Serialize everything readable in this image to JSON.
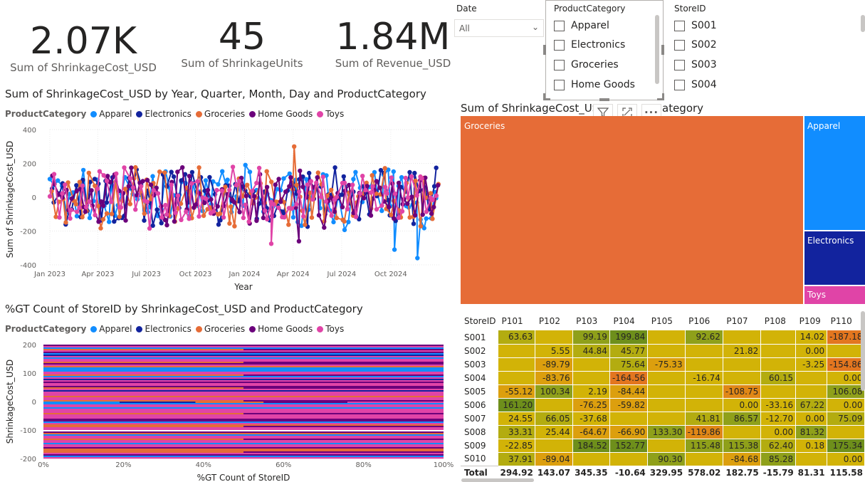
{
  "cards": [
    {
      "value": "2.07K",
      "label": "Sum of ShrinkageCost_USD"
    },
    {
      "value": "45",
      "label": "Sum of ShrinkageUnits"
    },
    {
      "value": "1.84M",
      "label": "Sum of Revenue_USD"
    }
  ],
  "colors": {
    "Apparel": "#118DFF",
    "Electronics": "#12239E",
    "Groceries": "#E66C37",
    "Home Goods": "#6B007B",
    "Toys": "#E044A7"
  },
  "legend": {
    "title": "ProductCategory",
    "items": [
      "Apparel",
      "Electronics",
      "Groceries",
      "Home Goods",
      "Toys"
    ]
  },
  "line_chart": {
    "title": "Sum of ShrinkageCost_USD by Year, Quarter, Month, Day and ProductCategory",
    "chart_data": {
      "type": "line",
      "title": "Sum of ShrinkageCost_USD by Year, Quarter, Month, Day and ProductCategory",
      "xlabel": "Year",
      "ylabel": "Sum of ShrinkageCost_USD",
      "ylim": [
        -400,
        400
      ],
      "y_ticks": [
        "400",
        "200",
        "0",
        "-200",
        "-400"
      ],
      "x_ticks": [
        "Jan 2023",
        "Apr 2023",
        "Jul 2023",
        "Oct 2023",
        "Jan 2024",
        "Apr 2024",
        "Jul 2024",
        "Oct 2024"
      ],
      "xlim": [
        "2023-01-01",
        "2024-12-31"
      ],
      "series_names": [
        "Apparel",
        "Electronics",
        "Groceries",
        "Home Goods",
        "Toys"
      ],
      "notable_points": [
        {
          "series": "Groceries",
          "x": "2024-04-03",
          "y": 300
        },
        {
          "series": "Toys",
          "x": "2024-02-20",
          "y": -275
        },
        {
          "series": "Home Goods",
          "x": "2024-04-12",
          "y": -260
        },
        {
          "series": "Apparel",
          "x": "2024-11-20",
          "y": -360
        },
        {
          "series": "Apparel",
          "x": "2024-10-08",
          "y": -310
        }
      ],
      "grid": true
    }
  },
  "bar_chart": {
    "title": "%GT Count of StoreID by ShrinkageCost_USD and ProductCategory",
    "chart_data": {
      "type": "bar",
      "orientation": "horizontal-stacked-100",
      "title": "%GT Count of StoreID by ShrinkageCost_USD and ProductCategory",
      "xlabel": "%GT Count of StoreID",
      "ylabel": "ShrinkageCost_USD",
      "ylim": [
        -200,
        200
      ],
      "y_ticks": [
        "200",
        "100",
        "0",
        "-100",
        "-200"
      ],
      "x_ticks": [
        "0%",
        "20%",
        "40%",
        "60%",
        "80%",
        "100%"
      ],
      "series_names": [
        "Apparel",
        "Electronics",
        "Groceries",
        "Home Goods",
        "Toys"
      ]
    }
  },
  "slicers": {
    "date": {
      "title": "Date",
      "value": "All"
    },
    "category": {
      "title": "ProductCategory",
      "items": [
        "Apparel",
        "Electronics",
        "Groceries",
        "Home Goods"
      ]
    },
    "store": {
      "title": "StoreID",
      "items": [
        "S001",
        "S002",
        "S003",
        "S004"
      ]
    }
  },
  "treemap": {
    "title": "Sum of ShrinkageCost_USD by ProductCategory",
    "title_visible": "Sum of ShrinkageCost_USD",
    "title_tail": "ategory",
    "chart_data": {
      "type": "treemap",
      "title": "Sum of ShrinkageCost_USD by ProductCategory",
      "labels": [
        "Groceries",
        "Apparel",
        "Electronics",
        "Toys"
      ]
    }
  },
  "matrix": {
    "corner": "StoreID",
    "columns": [
      "P101",
      "P102",
      "P103",
      "P104",
      "P105",
      "P106",
      "P107",
      "P108",
      "P109",
      "P110"
    ],
    "rows": [
      {
        "store": "S001",
        "values": [
          "63.63",
          "",
          "99.19",
          "199.84",
          "",
          "92.62",
          "",
          "",
          "14.02",
          "-187.18"
        ]
      },
      {
        "store": "S002",
        "values": [
          "",
          "5.55",
          "44.84",
          "45.77",
          "",
          "",
          "21.82",
          "",
          "0.00",
          ""
        ]
      },
      {
        "store": "S003",
        "values": [
          "",
          "-89.79",
          "",
          "75.64",
          "-75.33",
          "",
          "",
          "",
          "-3.25",
          "-154.86"
        ]
      },
      {
        "store": "S004",
        "values": [
          "",
          "-83.76",
          "",
          "-164.56",
          "",
          "-16.74",
          "",
          "60.15",
          "",
          "0.00"
        ]
      },
      {
        "store": "S005",
        "values": [
          "-55.12",
          "100.34",
          "2.19",
          "-84.44",
          "",
          "",
          "-108.75",
          "",
          "",
          "106.08"
        ]
      },
      {
        "store": "S006",
        "values": [
          "161.20",
          "",
          "-76.25",
          "-59.82",
          "",
          "",
          "0.00",
          "-33.16",
          "67.22",
          "0.00"
        ]
      },
      {
        "store": "S007",
        "values": [
          "24.55",
          "66.05",
          "-37.68",
          "",
          "",
          "41.81",
          "86.57",
          "-12.70",
          "0.00",
          "75.09"
        ]
      },
      {
        "store": "S008",
        "values": [
          "33.31",
          "25.44",
          "-64.67",
          "-66.90",
          "133.30",
          "-119.86",
          "",
          "0.00",
          "81.32",
          ""
        ]
      },
      {
        "store": "S009",
        "values": [
          "-22.85",
          "",
          "184.52",
          "152.77",
          "",
          "115.48",
          "115.38",
          "62.40",
          "0.18",
          "175.34"
        ]
      },
      {
        "store": "S010",
        "values": [
          "37.91",
          "-89.04",
          "",
          "",
          "90.30",
          "",
          "-84.68",
          "85.28",
          "",
          "0.00"
        ]
      }
    ],
    "total_label": "Total",
    "totals": [
      "294.92",
      "143.07",
      "345.35",
      "-10.64",
      "329.95",
      "578.02",
      "182.75",
      "-15.79",
      "81.31",
      "115.58"
    ]
  }
}
